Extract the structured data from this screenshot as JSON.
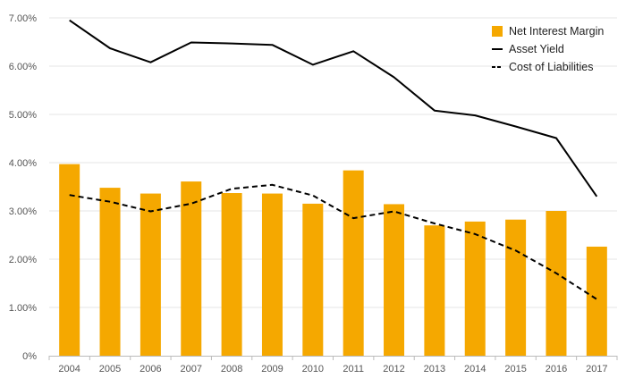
{
  "chart_data": {
    "type": "bar",
    "categories": [
      "2004",
      "2005",
      "2006",
      "2007",
      "2008",
      "2009",
      "2010",
      "2011",
      "2012",
      "2013",
      "2014",
      "2015",
      "2016",
      "2017"
    ],
    "series": [
      {
        "name": "Net Interest Margin",
        "kind": "bar",
        "color": "#F5A800",
        "values": [
          3.97,
          3.48,
          3.36,
          3.61,
          3.37,
          3.36,
          3.15,
          3.84,
          3.14,
          2.7,
          2.78,
          2.82,
          3.0,
          2.26
        ]
      },
      {
        "name": "Asset Yield",
        "kind": "line",
        "style": "solid",
        "color": "#000000",
        "values": [
          6.95,
          6.37,
          6.08,
          6.49,
          6.47,
          6.44,
          6.03,
          6.31,
          5.77,
          5.08,
          4.98,
          4.75,
          4.51,
          3.3
        ]
      },
      {
        "name": "Cost of Liabilities",
        "kind": "line",
        "style": "dashed",
        "color": "#000000",
        "values": [
          3.33,
          3.19,
          2.99,
          3.15,
          3.46,
          3.54,
          3.32,
          2.85,
          2.99,
          2.74,
          2.52,
          2.18,
          1.71,
          1.17
        ]
      }
    ],
    "y_ticks": [
      "0%",
      "1.00%",
      "2.00%",
      "3.00%",
      "4.00%",
      "5.00%",
      "6.00%",
      "7.00%"
    ],
    "ylim": [
      0,
      7
    ],
    "grid": true,
    "legend_position": "top-right",
    "gridline_color": "#e6e6e6",
    "axis_color": "#bbbbbb"
  }
}
